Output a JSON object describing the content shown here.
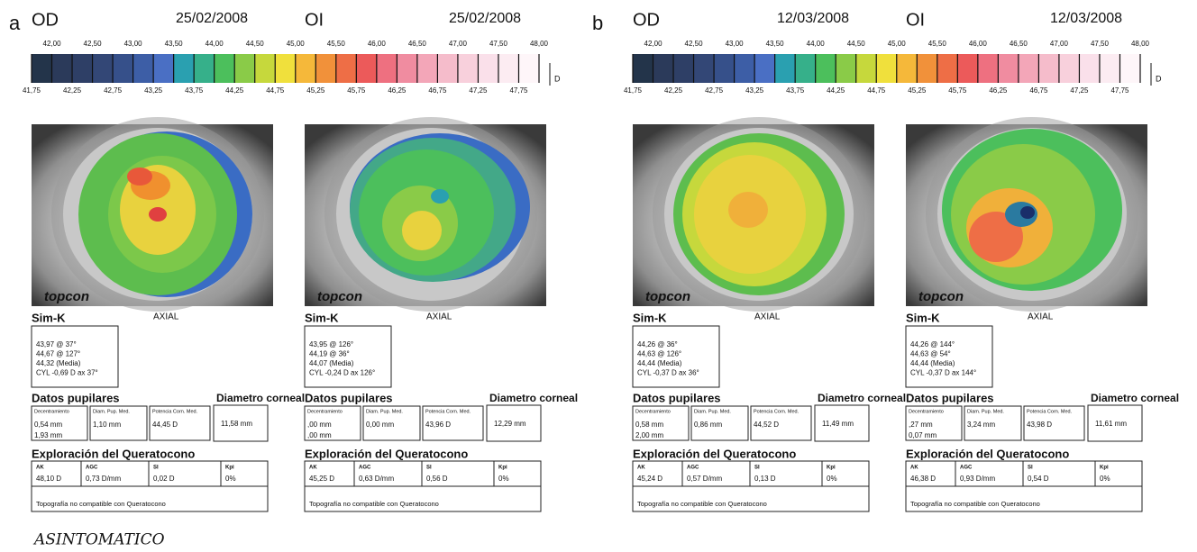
{
  "panels": [
    {
      "label": "a",
      "scale": {
        "top": [
          "42,00",
          "42,50",
          "43,00",
          "43,50",
          "44,00",
          "44,50",
          "45,00",
          "45,50",
          "46,00",
          "46,50",
          "47,00",
          "47,50",
          "48,00"
        ],
        "bottom": [
          "41,75",
          "42,25",
          "42,75",
          "43,25",
          "43,75",
          "44,25",
          "44,75",
          "45,25",
          "45,75",
          "46,25",
          "46,75",
          "47,25",
          "47,75"
        ],
        "unit": "D"
      },
      "eyes": [
        {
          "side": "OD",
          "date": "25/02/2008",
          "logo": "topcon",
          "map": "AXIAL",
          "simk_title": "Sim-K",
          "simk": [
            "43,97 @ 37°",
            "44,67 @ 127°",
            "44,32  (Media)",
            "CYL -0,69 D  ax 37°"
          ],
          "pupil_title": "Datos pupilares",
          "pupil_headers": [
            "Decentramiento",
            "Diam. Pup. Med.",
            "Potencia Corn. Med."
          ],
          "pupil_values": [
            [
              "0,54 mm",
              "1,93 mm"
            ],
            [
              "1,10 mm"
            ],
            [
              "44,45 D"
            ]
          ],
          "diameter_title": "Diametro corneal",
          "diameter": "11,58 mm",
          "kc_title": "Exploración del Queratocono",
          "kc_headers": [
            "AK",
            "AGC",
            "SI",
            "Kpi"
          ],
          "kc_values": [
            "48,10 D",
            "0,73 D/mm",
            "0,02 D",
            "0%"
          ],
          "kc_colors": [
            "#c9b23c",
            "#4fa04f",
            "#4fa04f",
            "#4fa04f"
          ],
          "kc_message": "Topografía no compatible con Queratocono"
        },
        {
          "side": "OI",
          "date": "25/02/2008",
          "logo": "topcon",
          "map": "AXIAL",
          "simk_title": "Sim-K",
          "simk": [
            "43,95 @ 126°",
            "44,19 @ 36°",
            "44,07  (Media)",
            "CYL -0,24 D  ax 126°"
          ],
          "pupil_title": "Datos pupilares",
          "pupil_headers": [
            "Decentramiento",
            "Diam. Pup. Med.",
            "Potencia Corn. Med."
          ],
          "pupil_values": [
            [
              ",00 mm",
              ",00 mm"
            ],
            [
              "0,00 mm"
            ],
            [
              "43,96 D"
            ]
          ],
          "diameter_title": "Diametro corneal",
          "diameter": "12,29 mm",
          "kc_title": "Exploración del Queratocono",
          "kc_headers": [
            "AK",
            "AGC",
            "SI",
            "Kpi"
          ],
          "kc_values": [
            "45,25 D",
            "0,63 D/mm",
            "0,56 D",
            "0%"
          ],
          "kc_colors": [
            "#4fa04f",
            "#4fa04f",
            "#4fa04f",
            "#4fa04f"
          ],
          "kc_message": "Topografía no compatible con Queratocono"
        }
      ]
    },
    {
      "label": "b",
      "scale": {
        "top": [
          "42,00",
          "42,50",
          "43,00",
          "43,50",
          "44,00",
          "44,50",
          "45,00",
          "45,50",
          "46,00",
          "46,50",
          "47,00",
          "47,50",
          "48,00"
        ],
        "bottom": [
          "41,75",
          "42,25",
          "42,75",
          "43,25",
          "43,75",
          "44,25",
          "44,75",
          "45,25",
          "45,75",
          "46,25",
          "46,75",
          "47,25",
          "47,75"
        ],
        "unit": "D"
      },
      "eyes": [
        {
          "side": "OD",
          "date": "12/03/2008",
          "logo": "topcon",
          "map": "AXIAL",
          "simk_title": "Sim-K",
          "simk": [
            "44,26 @ 36°",
            "44,63 @ 126°",
            "44,44  (Media)",
            "CYL -0,37 D  ax 36°"
          ],
          "pupil_title": "Datos pupilares",
          "pupil_headers": [
            "Decentramiento",
            "Diam. Pup. Med.",
            "Potencia Corn. Med."
          ],
          "pupil_values": [
            [
              "0,58 mm",
              "2,00 mm"
            ],
            [
              "0,86 mm"
            ],
            [
              "44,52 D"
            ]
          ],
          "diameter_title": "Diametro corneal",
          "diameter": "11,49 mm",
          "kc_title": "Exploración del Queratocono",
          "kc_headers": [
            "AK",
            "AGC",
            "SI",
            "Kpi"
          ],
          "kc_values": [
            "45,24 D",
            "0,57 D/mm",
            "0,13 D",
            "0%"
          ],
          "kc_colors": [
            "#4fa04f",
            "#4fa04f",
            "#4fa04f",
            "#4fa04f"
          ],
          "kc_message": "Topografía no compatible con Queratocono"
        },
        {
          "side": "OI",
          "date": "12/03/2008",
          "logo": "topcon",
          "map": "AXIAL",
          "simk_title": "Sim-K",
          "simk": [
            "44,26 @ 144°",
            "44,63 @ 54°",
            "44,44  (Media)",
            "CYL -0,37 D  ax 144°"
          ],
          "pupil_title": "Datos pupilares",
          "pupil_headers": [
            "Decentramiento",
            "Diam. Pup. Med.",
            "Potencia Corn. Med."
          ],
          "pupil_values": [
            [
              ",27 mm",
              "0,07 mm"
            ],
            [
              "3,24 mm"
            ],
            [
              "43,98 D"
            ]
          ],
          "diameter_title": "Diametro corneal",
          "diameter": "11,61 mm",
          "kc_title": "Exploración del Queratocono",
          "kc_headers": [
            "AK",
            "AGC",
            "SI",
            "Kpi"
          ],
          "kc_values": [
            "46,38 D",
            "0,93 D/mm",
            "0,54 D",
            "0%"
          ],
          "kc_colors": [
            "#4fa04f",
            "#4fa04f",
            "#4fa04f",
            "#4fa04f"
          ],
          "kc_message": "Topografía no compatible con Queratocono"
        }
      ]
    }
  ],
  "note": "ASINTOMATICO"
}
